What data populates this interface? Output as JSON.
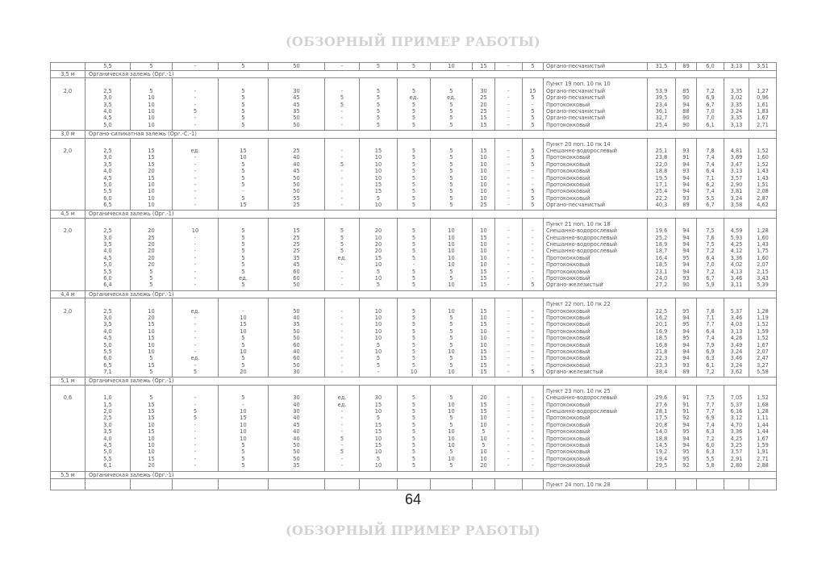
{
  "watermark_top": "(ОБЗОРНЫЙ ПРИМЕР РАБОТЫ)",
  "watermark_bottom": "(ОБЗОРНЫЙ ПРИМЕР РАБОТЫ)",
  "page_number": "64",
  "table": {
    "first_row": [
      "5,5",
      "5",
      "-",
      "5",
      "50",
      "-",
      "5",
      "5",
      "10",
      "15",
      "-",
      "5",
      "Органо-песчанистый",
      "31,5",
      "89",
      "6,0",
      "3,13",
      "3,51"
    ],
    "sections": [
      {
        "layer_depth": "3,5 м",
        "layer_name": "Органическая залежь (Орг.-1)",
        "point": "Пункт 19 поп. 10 пк 10",
        "start_depth": "2,0",
        "rows": [
          [
            "2,5",
            "5",
            "-",
            "5",
            "30",
            "-",
            "5",
            "5",
            "5",
            "30",
            "-",
            "15",
            "Органо-песчанистый",
            "53,9",
            "85",
            "7,2",
            "3,35",
            "1,27"
          ],
          [
            "3,0",
            "10",
            "-",
            "5",
            "45",
            "5",
            "5",
            "ед.",
            "ед.",
            "25",
            "-",
            "5",
            "Органо-песчанистый",
            "39,5",
            "90",
            "6,9",
            "3,02",
            "0,96"
          ],
          [
            "3,5",
            "10",
            "-",
            "5",
            "45",
            "5",
            "5",
            "5",
            "5",
            "20",
            "-",
            "-",
            "Протококковый",
            "23,4",
            "94",
            "6,7",
            "3,35",
            "1,61"
          ],
          [
            "4,0",
            "10",
            "5",
            "5",
            "35",
            "-",
            "5",
            "5",
            "5",
            "25",
            "-",
            "5",
            "Органо-песчанистый",
            "36,1",
            "88",
            "7,0",
            "3,24",
            "1,83"
          ],
          [
            "4,5",
            "10",
            "-",
            "5",
            "50",
            "-",
            "5",
            "5",
            "5",
            "15",
            "-",
            "5",
            "Органо-песчанистый",
            "32,7",
            "90",
            "7,0",
            "3,35",
            "1,67"
          ],
          [
            "5,0",
            "10",
            "-",
            "5",
            "50",
            "-",
            "5",
            "5",
            "5",
            "15",
            "-",
            "5",
            "Протококковый",
            "25,4",
            "90",
            "6,1",
            "3,13",
            "2,71"
          ]
        ]
      },
      {
        "layer_depth": "3,0 м",
        "layer_name": "Органо-силикатная залежь (Орг.-С.-1)",
        "point": "Пункт 20 поп. 10 пк 14",
        "start_depth": "2,0",
        "rows": [
          [
            "2,5",
            "15",
            "ед.",
            "15",
            "25",
            "-",
            "15",
            "5",
            "5",
            "15",
            "-",
            "5",
            "Снешанно-водорослевый",
            "25,1",
            "93",
            "7,8",
            "4,81",
            "1,52"
          ],
          [
            "3,0",
            "15",
            "-",
            "10",
            "40",
            "-",
            "10",
            "5",
            "5",
            "10",
            "-",
            "5",
            "Протококковый",
            "23,8",
            "91",
            "7,4",
            "3,69",
            "1,60"
          ],
          [
            "3,5",
            "15",
            "-",
            "5",
            "40",
            "5",
            "10",
            "5",
            "5",
            "10",
            "-",
            "5",
            "Протококковый",
            "22,0",
            "94",
            "7,4",
            "3,47",
            "1,52"
          ],
          [
            "4,0",
            "20",
            "-",
            "5",
            "45",
            "-",
            "10",
            "5",
            "5",
            "10",
            "-",
            "-",
            "Протококковый",
            "18,8",
            "93",
            "6,4",
            "3,13",
            "1,43"
          ],
          [
            "4,5",
            "15",
            "-",
            "5",
            "50",
            "-",
            "10",
            "5",
            "5",
            "10",
            "-",
            "-",
            "Протококковый",
            "19,5",
            "94",
            "7,1",
            "3,57",
            "1,43"
          ],
          [
            "5,0",
            "10",
            "-",
            "5",
            "50",
            "-",
            "15",
            "5",
            "5",
            "10",
            "-",
            "-",
            "Протококковый",
            "17,1",
            "94",
            "6,2",
            "2,90",
            "1,51"
          ],
          [
            "5,5",
            "10",
            "-",
            "-",
            "50",
            "-",
            "15",
            "5",
            "5",
            "10",
            "-",
            "5",
            "Протококковый",
            "25,4",
            "94",
            "7,4",
            "3,81",
            "2,08"
          ],
          [
            "6,0",
            "10",
            "-",
            "5",
            "55",
            "-",
            "5",
            "5",
            "5",
            "10",
            "-",
            "5",
            "Протококковый",
            "22,2",
            "93",
            "5,5",
            "3,24",
            "2,87"
          ],
          [
            "6,5",
            "10",
            "-",
            "15",
            "25",
            "-",
            "10",
            "5",
            "5",
            "25",
            "-",
            "5",
            "Органо-песчанистый",
            "40,3",
            "89",
            "6,7",
            "3,58",
            "4,62"
          ]
        ]
      },
      {
        "layer_depth": "4,5 м",
        "layer_name": "Органическая залежь (Орг.-1)",
        "point": "Пункт 21 поп. 10 пк 18",
        "start_depth": "2,0",
        "rows": [
          [
            "2,5",
            "20",
            "10",
            "5",
            "15",
            "5",
            "20",
            "5",
            "10",
            "10",
            "-",
            "-",
            "Снешанно-водорослевый",
            "19,6",
            "94",
            "7,5",
            "4,59",
            "1,28"
          ],
          [
            "3,0",
            "25",
            "-",
            "5",
            "25",
            "5",
            "10",
            "5",
            "10",
            "15",
            "-",
            "-",
            "Снешанно-водорослевый",
            "25,2",
            "94",
            "7,6",
            "5,93",
            "1,60"
          ],
          [
            "3,5",
            "20",
            "-",
            "5",
            "25",
            "5",
            "20",
            "5",
            "10",
            "10",
            "-",
            "-",
            "Снешанно-водорослевый",
            "18,9",
            "94",
            "7,5",
            "4,25",
            "1,43"
          ],
          [
            "4,0",
            "20",
            "-",
            "5",
            "25",
            "5",
            "20",
            "5",
            "10",
            "10",
            "-",
            "-",
            "Снешанно-водорослевый",
            "18,7",
            "94",
            "7,2",
            "4,12",
            "1,75"
          ],
          [
            "4,5",
            "20",
            "-",
            "5",
            "35",
            "ед.",
            "15",
            "5",
            "10",
            "10",
            "-",
            "-",
            "Протококковый",
            "16,4",
            "95",
            "6,4",
            "3,36",
            "1,60"
          ],
          [
            "5,0",
            "20",
            "-",
            "5",
            "45",
            "-",
            "10",
            "-",
            "10",
            "10",
            "-",
            "-",
            "Протококковый",
            "18,5",
            "94",
            "7,0",
            "4,02",
            "2,07"
          ],
          [
            "5,5",
            "5",
            "-",
            "5",
            "60",
            "-",
            "5",
            "5",
            "5",
            "15",
            "-",
            "-",
            "Протококковый",
            "23,1",
            "94",
            "7,2",
            "4,13",
            "2,15"
          ],
          [
            "6,0",
            "5",
            "-",
            "ед.",
            "60",
            "-",
            "10",
            "5",
            "5",
            "15",
            "-",
            "-",
            "Протококковый",
            "24,0",
            "93",
            "6,7",
            "3,46",
            "3,43"
          ],
          [
            "6,4",
            "5",
            "-",
            "5",
            "50",
            "-",
            "5",
            "5",
            "10",
            "15",
            "-",
            "5",
            "Органо-железистый",
            "27,2",
            "90",
            "5,9",
            "3,11",
            "5,39"
          ]
        ]
      },
      {
        "layer_depth": "4,4 м",
        "layer_name": "Органическая залежь (Орг.-1)",
        "point": "Пункт 22 поп. 10 пк 22",
        "start_depth": "2,0",
        "rows": [
          [
            "2,5",
            "10",
            "ед.",
            "-",
            "50",
            "-",
            "10",
            "5",
            "10",
            "15",
            "-",
            "-",
            "Протококковый",
            "22,5",
            "95",
            "7,8",
            "5,37",
            "1,28"
          ],
          [
            "3,0",
            "20",
            "-",
            "10",
            "40",
            "-",
            "10",
            "5",
            "5",
            "10",
            "-",
            "-",
            "Протококковый",
            "16,2",
            "94",
            "7,1",
            "3,46",
            "1,19"
          ],
          [
            "3,5",
            "15",
            "-",
            "15",
            "35",
            "-",
            "10",
            "5",
            "5",
            "15",
            "-",
            "-",
            "Протококковый",
            "20,1",
            "95",
            "7,7",
            "4,03",
            "1,52"
          ],
          [
            "4,0",
            "10",
            "-",
            "10",
            "50",
            "-",
            "10",
            "5",
            "5",
            "10",
            "-",
            "-",
            "Протококковый",
            "16,9",
            "94",
            "6,4",
            "3,13",
            "1,59"
          ],
          [
            "4,5",
            "15",
            "-",
            "5",
            "50",
            "-",
            "10",
            "5",
            "5",
            "10",
            "-",
            "-",
            "Протококковый",
            "18,5",
            "95",
            "7,4",
            "4,26",
            "1,52"
          ],
          [
            "5,0",
            "10",
            "-",
            "5",
            "60",
            "-",
            "5",
            "5",
            "5",
            "10",
            "-",
            "-",
            "Протококковый",
            "16,8",
            "94",
            "7,9",
            "3,49",
            "1,67"
          ],
          [
            "5,5",
            "10",
            "-",
            "10",
            "40",
            "-",
            "10",
            "5",
            "10",
            "15",
            "-",
            "-",
            "Протококковый",
            "21,8",
            "94",
            "6,9",
            "3,24",
            "2,07"
          ],
          [
            "6,0",
            "5",
            "ед.",
            "5",
            "60",
            "-",
            "5",
            "5",
            "5",
            "15",
            "-",
            "-",
            "Протококковый",
            "22,3",
            "94",
            "6,3",
            "3,46",
            "2,47"
          ],
          [
            "6,5",
            "15",
            "-",
            "5",
            "50",
            "-",
            "5",
            "5",
            "5",
            "15",
            "-",
            "-",
            "Протококковый",
            "23,3",
            "93",
            "6,1",
            "3,24",
            "3,27"
          ],
          [
            "7,1",
            "5",
            "5",
            "20",
            "30",
            "-",
            "-",
            "10",
            "10",
            "15",
            "-",
            "5",
            "Органо-железистый",
            "38,4",
            "89",
            "7,2",
            "3,62",
            "5,58"
          ]
        ]
      },
      {
        "layer_depth": "5,1 м",
        "layer_name": "Органическая залежь (Орг.-1)",
        "point": "Пункт 23 поп. 10 пк 25",
        "start_depth": "0,6",
        "rows": [
          [
            "1,0",
            "5",
            "-",
            "5",
            "30",
            "ед.",
            "30",
            "5",
            "5",
            "20",
            "-",
            "-",
            "Снешанно-водорослевый",
            "29,6",
            "91",
            "7,5",
            "7,05",
            "1,52"
          ],
          [
            "1,5",
            "15",
            "-",
            "-",
            "40",
            "ед.",
            "15",
            "5",
            "10",
            "15",
            "-",
            "-",
            "Протококковый",
            "27,6",
            "91",
            "7,7",
            "5,37",
            "1,68"
          ],
          [
            "2,0",
            "15",
            "5",
            "10",
            "30",
            "-",
            "10",
            "5",
            "10",
            "15",
            "-",
            "-",
            "Снешанно-водорослевый",
            "28,1",
            "91",
            "7,7",
            "6,16",
            "1,28"
          ],
          [
            "2,5",
            "15",
            "5",
            "15",
            "40",
            "-",
            "5",
            "5",
            "5",
            "10",
            "-",
            "-",
            "Протококковый",
            "17,5",
            "92",
            "6,9",
            "3,12",
            "1,11"
          ],
          [
            "3,0",
            "10",
            "-",
            "10",
            "45",
            "-",
            "15",
            "5",
            "5",
            "10",
            "-",
            "-",
            "Протококковый",
            "20,8",
            "94",
            "7,4",
            "4,70",
            "1,44"
          ],
          [
            "3,5",
            "15",
            "-",
            "10",
            "40",
            "-",
            "15",
            "5",
            "10",
            "5",
            "-",
            "-",
            "Протококковый",
            "14,0",
            "95",
            "6,3",
            "3,36",
            "1,44"
          ],
          [
            "4,0",
            "10",
            "-",
            "10",
            "40",
            "5",
            "10",
            "5",
            "10",
            "10",
            "-",
            "-",
            "Протококковый",
            "18,8",
            "94",
            "7,2",
            "4,25",
            "1,67"
          ],
          [
            "4,5",
            "10",
            "-",
            "5",
            "50",
            "-",
            "15",
            "5",
            "10",
            "5",
            "-",
            "-",
            "Протококковый",
            "14,5",
            "94",
            "6,0",
            "3,25",
            "1,59"
          ],
          [
            "5,0",
            "10",
            "-",
            "5",
            "50",
            "5",
            "10",
            "5",
            "5",
            "10",
            "-",
            "-",
            "Протококковый",
            "19,2",
            "95",
            "6,3",
            "3,57",
            "1,91"
          ],
          [
            "5,5",
            "15",
            "-",
            "5",
            "50",
            "-",
            "5",
            "5",
            "10",
            "10",
            "-",
            "-",
            "Протококковый",
            "19,4",
            "95",
            "5,5",
            "2,91",
            "2,71"
          ],
          [
            "6,1",
            "20",
            "-",
            "5",
            "35",
            "-",
            "10",
            "5",
            "5",
            "20",
            "-",
            "-",
            "Протококковый",
            "29,5",
            "92",
            "5,8",
            "2,80",
            "2,88"
          ]
        ]
      },
      {
        "layer_depth": "5,5 м",
        "layer_name": "Органическая залежь (Орг.-1)",
        "point": "Пункт 24 поп. 10 пк 28",
        "start_depth": "",
        "rows": []
      }
    ]
  }
}
